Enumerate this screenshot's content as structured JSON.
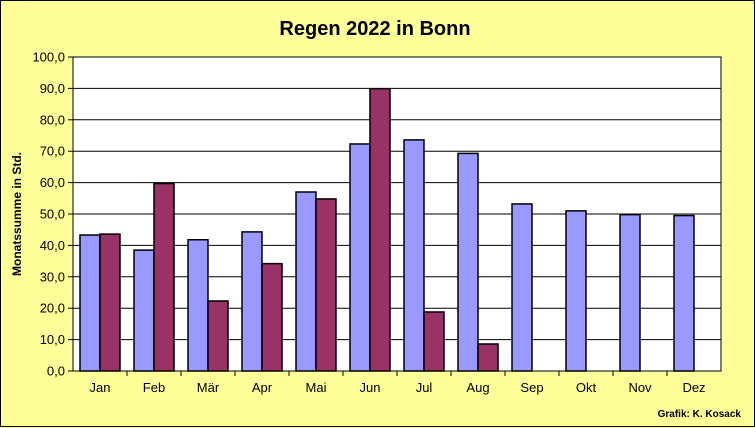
{
  "chart_data": {
    "type": "bar",
    "title": "Regen 2022 in Bonn",
    "ylabel": "Monatssumme in Std.",
    "xlabel": "",
    "categories": [
      "Jan",
      "Feb",
      "Mär",
      "Apr",
      "Mai",
      "Jun",
      "Jul",
      "Aug",
      "Sep",
      "Okt",
      "Nov",
      "Dez"
    ],
    "series": [
      {
        "color": "#9999ff",
        "values": [
          43.3,
          38.5,
          41.8,
          44.3,
          57.0,
          72.3,
          73.6,
          69.3,
          53.2,
          51.0,
          49.8,
          49.5
        ]
      },
      {
        "color": "#993366",
        "values": [
          43.6,
          59.7,
          22.3,
          34.2,
          54.8,
          89.9,
          18.8,
          8.6,
          null,
          null,
          null,
          null
        ]
      }
    ],
    "ylim": [
      0,
      100
    ],
    "ytick_step": 10,
    "ytick_labels": [
      "0,0",
      "10,0",
      "20,0",
      "30,0",
      "40,0",
      "50,0",
      "60,0",
      "70,0",
      "80,0",
      "90,0",
      "100,0"
    ],
    "grid": true,
    "plot_background": "#ffffff",
    "credit": "Grafik:  K. Kosack"
  }
}
